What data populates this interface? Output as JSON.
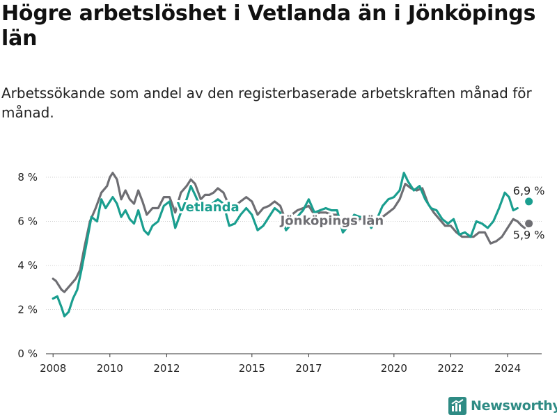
{
  "title": "Högre arbetslöshet i Vetlanda än i Jönköpings län",
  "subtitle": "Arbetssökande som andel av den registerbaserade arbetskraften månad för månad.",
  "brand": {
    "name": "Newsworthy",
    "icon": "newsworthy-logo-icon",
    "color": "#2e8b84"
  },
  "chart_data": {
    "type": "line",
    "title": "Högre arbetslöshet i Vetlanda än i Jönköpings län",
    "subtitle": "Arbetssökande som andel av den registerbaserade arbetskraften månad för månad.",
    "xlabel": "",
    "ylabel": "",
    "xlim": [
      2007.75,
      2025.2
    ],
    "ylim": [
      0,
      8
    ],
    "x_ticks": [
      2008,
      2010,
      2012,
      2015,
      2017,
      2020,
      2022,
      2024
    ],
    "x_tick_labels": [
      "2008",
      "2010",
      "2012",
      "2015",
      "2017",
      "2020",
      "2022",
      "2024"
    ],
    "y_ticks": [
      0,
      2,
      4,
      6,
      8
    ],
    "y_tick_labels": [
      "0 %",
      "2 %",
      "4 %",
      "6 %",
      "8 %"
    ],
    "grid": "horizontal",
    "legend": "inline labels",
    "series": [
      {
        "name": "Jönköpings län",
        "color": "#6e6e73",
        "end_label": "5,9 %",
        "points": [
          [
            2008.0,
            3.4
          ],
          [
            2008.1,
            3.3
          ],
          [
            2008.3,
            2.9
          ],
          [
            2008.4,
            2.8
          ],
          [
            2008.6,
            3.1
          ],
          [
            2008.8,
            3.4
          ],
          [
            2008.95,
            3.8
          ],
          [
            2009.1,
            4.8
          ],
          [
            2009.3,
            6.0
          ],
          [
            2009.5,
            6.6
          ],
          [
            2009.7,
            7.3
          ],
          [
            2009.9,
            7.6
          ],
          [
            2010.0,
            8.0
          ],
          [
            2010.1,
            8.2
          ],
          [
            2010.25,
            7.9
          ],
          [
            2010.4,
            7.0
          ],
          [
            2010.55,
            7.4
          ],
          [
            2010.7,
            7.0
          ],
          [
            2010.85,
            6.8
          ],
          [
            2011.0,
            7.4
          ],
          [
            2011.15,
            6.9
          ],
          [
            2011.3,
            6.3
          ],
          [
            2011.5,
            6.6
          ],
          [
            2011.7,
            6.6
          ],
          [
            2011.9,
            7.1
          ],
          [
            2012.1,
            7.1
          ],
          [
            2012.3,
            6.4
          ],
          [
            2012.5,
            7.3
          ],
          [
            2012.7,
            7.6
          ],
          [
            2012.85,
            7.9
          ],
          [
            2013.0,
            7.7
          ],
          [
            2013.2,
            7.0
          ],
          [
            2013.35,
            7.2
          ],
          [
            2013.5,
            7.2
          ],
          [
            2013.65,
            7.3
          ],
          [
            2013.8,
            7.5
          ],
          [
            2014.0,
            7.3
          ],
          [
            2014.2,
            6.7
          ],
          [
            2014.4,
            6.7
          ],
          [
            2014.6,
            6.9
          ],
          [
            2014.8,
            7.1
          ],
          [
            2015.0,
            6.9
          ],
          [
            2015.2,
            6.3
          ],
          [
            2015.4,
            6.6
          ],
          [
            2015.6,
            6.7
          ],
          [
            2015.8,
            6.9
          ],
          [
            2016.0,
            6.7
          ],
          [
            2016.2,
            6.0
          ],
          [
            2016.4,
            6.3
          ],
          [
            2016.6,
            6.5
          ],
          [
            2016.8,
            6.6
          ],
          [
            2017.0,
            6.7
          ],
          [
            2017.2,
            6.3
          ],
          [
            2017.4,
            6.4
          ],
          [
            2017.6,
            6.4
          ],
          [
            2017.8,
            6.3
          ],
          [
            2018.0,
            6.3
          ],
          [
            2018.2,
            5.6
          ],
          [
            2018.4,
            5.8
          ],
          [
            2018.6,
            6.0
          ],
          [
            2018.8,
            6.1
          ],
          [
            2019.0,
            6.1
          ],
          [
            2019.2,
            5.8
          ],
          [
            2019.4,
            6.1
          ],
          [
            2019.6,
            6.2
          ],
          [
            2019.8,
            6.4
          ],
          [
            2020.0,
            6.6
          ],
          [
            2020.2,
            7.0
          ],
          [
            2020.4,
            7.7
          ],
          [
            2020.6,
            7.5
          ],
          [
            2020.8,
            7.4
          ],
          [
            2021.0,
            7.5
          ],
          [
            2021.2,
            6.8
          ],
          [
            2021.4,
            6.4
          ],
          [
            2021.6,
            6.1
          ],
          [
            2021.8,
            5.8
          ],
          [
            2022.0,
            5.8
          ],
          [
            2022.2,
            5.5
          ],
          [
            2022.4,
            5.3
          ],
          [
            2022.6,
            5.3
          ],
          [
            2022.8,
            5.3
          ],
          [
            2023.0,
            5.5
          ],
          [
            2023.2,
            5.5
          ],
          [
            2023.4,
            5.0
          ],
          [
            2023.6,
            5.1
          ],
          [
            2023.8,
            5.3
          ],
          [
            2024.0,
            5.7
          ],
          [
            2024.2,
            6.1
          ],
          [
            2024.35,
            6.0
          ],
          [
            2024.5,
            5.8
          ],
          [
            2024.6,
            5.7
          ]
        ],
        "last_point": [
          2024.75,
          5.9
        ]
      },
      {
        "name": "Vetlanda",
        "color": "#1a9e8f",
        "end_label": "6,9 %",
        "points": [
          [
            2008.0,
            2.5
          ],
          [
            2008.15,
            2.6
          ],
          [
            2008.3,
            2.1
          ],
          [
            2008.4,
            1.7
          ],
          [
            2008.55,
            1.9
          ],
          [
            2008.7,
            2.5
          ],
          [
            2008.85,
            2.9
          ],
          [
            2009.0,
            3.8
          ],
          [
            2009.15,
            4.8
          ],
          [
            2009.35,
            6.2
          ],
          [
            2009.55,
            6.0
          ],
          [
            2009.7,
            7.0
          ],
          [
            2009.85,
            6.6
          ],
          [
            2010.0,
            6.9
          ],
          [
            2010.1,
            7.1
          ],
          [
            2010.25,
            6.8
          ],
          [
            2010.4,
            6.2
          ],
          [
            2010.55,
            6.5
          ],
          [
            2010.7,
            6.1
          ],
          [
            2010.85,
            5.9
          ],
          [
            2011.0,
            6.5
          ],
          [
            2011.2,
            5.6
          ],
          [
            2011.35,
            5.4
          ],
          [
            2011.5,
            5.8
          ],
          [
            2011.7,
            6.0
          ],
          [
            2011.9,
            6.7
          ],
          [
            2012.1,
            6.9
          ],
          [
            2012.3,
            5.7
          ],
          [
            2012.5,
            6.4
          ],
          [
            2012.7,
            7.0
          ],
          [
            2012.85,
            7.6
          ],
          [
            2013.0,
            7.2
          ],
          [
            2013.2,
            6.6
          ],
          [
            2013.4,
            6.6
          ],
          [
            2013.6,
            6.8
          ],
          [
            2013.8,
            7.0
          ],
          [
            2014.0,
            6.8
          ],
          [
            2014.2,
            5.8
          ],
          [
            2014.4,
            5.9
          ],
          [
            2014.6,
            6.3
          ],
          [
            2014.8,
            6.6
          ],
          [
            2015.0,
            6.3
          ],
          [
            2015.2,
            5.6
          ],
          [
            2015.4,
            5.8
          ],
          [
            2015.6,
            6.2
          ],
          [
            2015.8,
            6.6
          ],
          [
            2016.0,
            6.4
          ],
          [
            2016.2,
            5.6
          ],
          [
            2016.4,
            5.9
          ],
          [
            2016.6,
            6.2
          ],
          [
            2016.8,
            6.5
          ],
          [
            2017.0,
            7.0
          ],
          [
            2017.2,
            6.4
          ],
          [
            2017.4,
            6.5
          ],
          [
            2017.6,
            6.6
          ],
          [
            2017.8,
            6.5
          ],
          [
            2018.0,
            6.5
          ],
          [
            2018.2,
            5.5
          ],
          [
            2018.4,
            5.8
          ],
          [
            2018.6,
            6.3
          ],
          [
            2018.8,
            6.2
          ],
          [
            2019.0,
            6.2
          ],
          [
            2019.2,
            5.7
          ],
          [
            2019.4,
            6.1
          ],
          [
            2019.6,
            6.7
          ],
          [
            2019.8,
            7.0
          ],
          [
            2020.0,
            7.1
          ],
          [
            2020.2,
            7.4
          ],
          [
            2020.35,
            8.2
          ],
          [
            2020.5,
            7.8
          ],
          [
            2020.7,
            7.4
          ],
          [
            2020.9,
            7.6
          ],
          [
            2021.1,
            7.0
          ],
          [
            2021.3,
            6.6
          ],
          [
            2021.5,
            6.5
          ],
          [
            2021.7,
            6.1
          ],
          [
            2021.9,
            5.9
          ],
          [
            2022.1,
            6.1
          ],
          [
            2022.3,
            5.4
          ],
          [
            2022.5,
            5.5
          ],
          [
            2022.7,
            5.3
          ],
          [
            2022.9,
            6.0
          ],
          [
            2023.1,
            5.9
          ],
          [
            2023.3,
            5.7
          ],
          [
            2023.5,
            6.0
          ],
          [
            2023.7,
            6.6
          ],
          [
            2023.9,
            7.3
          ],
          [
            2024.05,
            7.1
          ],
          [
            2024.2,
            6.5
          ],
          [
            2024.35,
            6.6
          ]
        ],
        "last_point": [
          2024.75,
          6.9
        ]
      }
    ]
  }
}
